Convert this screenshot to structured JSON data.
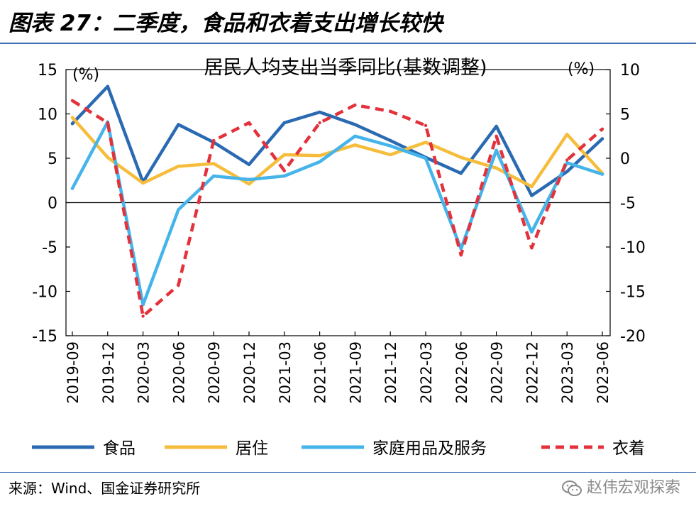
{
  "figure": {
    "title": "图表 27：二季度，食品和衣着支出增长较快",
    "source": "来源：Wind、国金证券研究所",
    "watermark": "赵伟宏观探索",
    "watermark_icon": "wechat-icon"
  },
  "chart_data": {
    "type": "line",
    "title": "居民人均支出当季同比(基数调整)",
    "left_unit": "(%)",
    "right_unit": "(%)",
    "categories": [
      "2019-09",
      "2019-12",
      "2020-03",
      "2020-06",
      "2020-09",
      "2020-12",
      "2021-03",
      "2021-06",
      "2021-09",
      "2021-12",
      "2022-03",
      "2022-06",
      "2022-09",
      "2022-12",
      "2023-03",
      "2023-06"
    ],
    "y_left": {
      "min": -15,
      "max": 15,
      "ticks": [
        -15,
        -10,
        -5,
        0,
        5,
        10,
        15
      ],
      "tick_labels": [
        "-15",
        "-10",
        "-5",
        "0",
        "5",
        "10",
        "15"
      ]
    },
    "y_right": {
      "min": -20,
      "max": 10,
      "ticks": [
        -20,
        -15,
        -10,
        -5,
        0,
        5,
        10
      ],
      "tick_labels": [
        "-20",
        "-15",
        "-10",
        "-5",
        "0",
        "5",
        "10"
      ]
    },
    "legend_position": "bottom",
    "grid": false,
    "series": [
      {
        "name": "食品",
        "axis": "left",
        "color": "#2a6ab2",
        "style": "solid",
        "values": [
          8.9,
          13.1,
          2.3,
          8.8,
          6.8,
          4.3,
          9.0,
          10.2,
          8.8,
          7.0,
          5.1,
          3.3,
          8.6,
          0.8,
          3.5,
          7.2
        ]
      },
      {
        "name": "居住",
        "axis": "left",
        "color": "#f6bd3c",
        "style": "solid",
        "values": [
          9.6,
          5.1,
          2.2,
          4.1,
          4.4,
          2.1,
          5.4,
          5.3,
          6.5,
          5.4,
          6.8,
          5.1,
          3.9,
          1.8,
          7.7,
          3.3
        ]
      },
      {
        "name": "家庭用品及服务",
        "axis": "right",
        "color": "#45b4ea",
        "style": "solid",
        "values": [
          -3.4,
          4.1,
          -16.5,
          -5.8,
          -2.0,
          -2.4,
          -2.0,
          -0.4,
          2.5,
          1.4,
          0.0,
          -10.2,
          0.9,
          -8.3,
          -0.5,
          -1.8
        ]
      },
      {
        "name": "衣着",
        "axis": "right",
        "color": "#e3323b",
        "style": "dashed",
        "values": [
          6.5,
          4.0,
          -17.8,
          -14.3,
          2.0,
          4.0,
          -1.4,
          4.0,
          6.0,
          5.3,
          3.7,
          -10.9,
          2.5,
          -10.1,
          -0.2,
          3.3
        ]
      }
    ]
  }
}
